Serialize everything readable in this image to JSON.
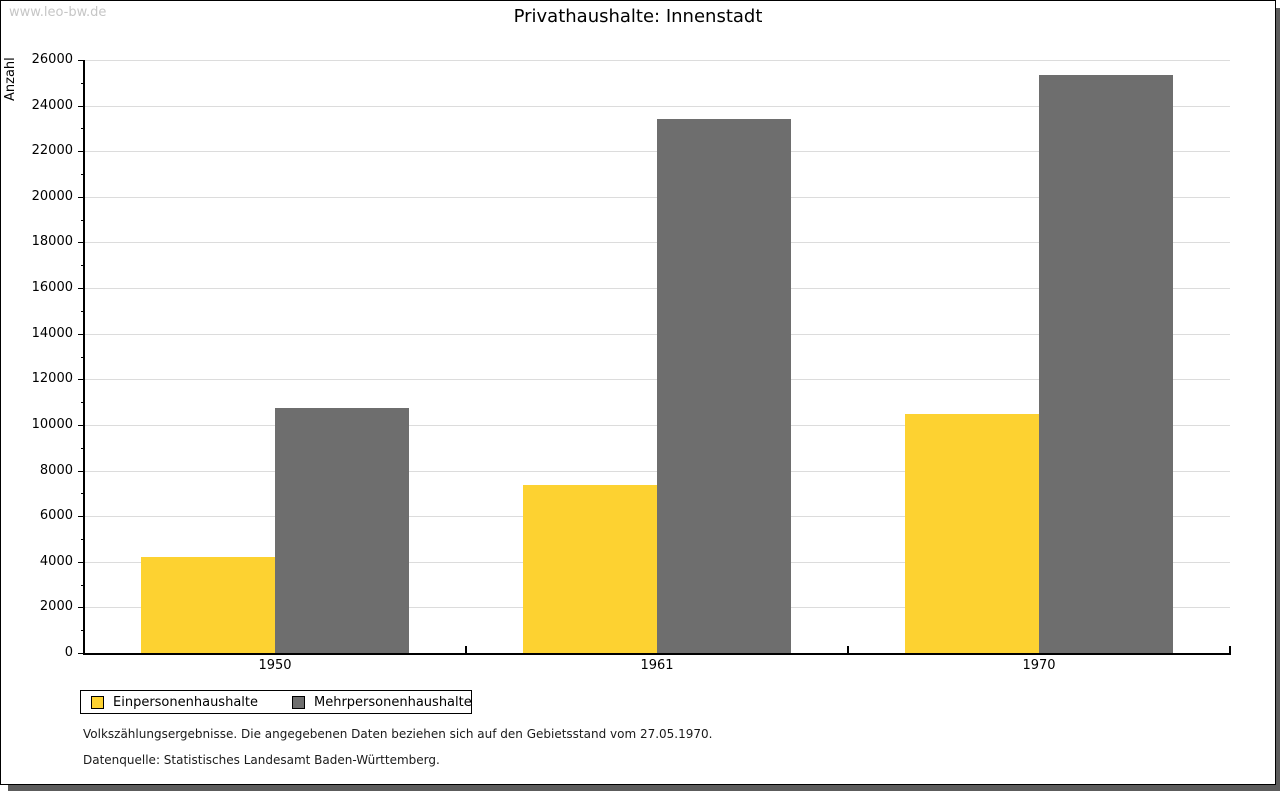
{
  "watermark": "www.leo-bw.de",
  "chart_data": {
    "type": "bar",
    "title": "Privathaushalte: Innenstadt",
    "ylabel": "Anzahl",
    "xlabel": "",
    "categories": [
      "1950",
      "1961",
      "1970"
    ],
    "series": [
      {
        "name": "Einpersonenhaushalte",
        "color": "#fdd231",
        "values": [
          4200,
          7350,
          10500
        ]
      },
      {
        "name": "Mehrpersonenhaushalte",
        "color": "#6e6e6e",
        "values": [
          10750,
          23400,
          25350
        ]
      }
    ],
    "ylim": [
      0,
      26000
    ],
    "yticks": [
      0,
      2000,
      4000,
      6000,
      8000,
      10000,
      12000,
      14000,
      16000,
      18000,
      20000,
      22000,
      24000,
      26000
    ],
    "minor_ytick_step": 1000,
    "grid": true,
    "legend_position": "bottom-left"
  },
  "footer": {
    "line1": "Volkszählungsergebnisse. Die angegebenen Daten beziehen sich auf den Gebietsstand vom 27.05.1970.",
    "line2": "Datenquelle: Statistisches Landesamt Baden-Württemberg."
  }
}
